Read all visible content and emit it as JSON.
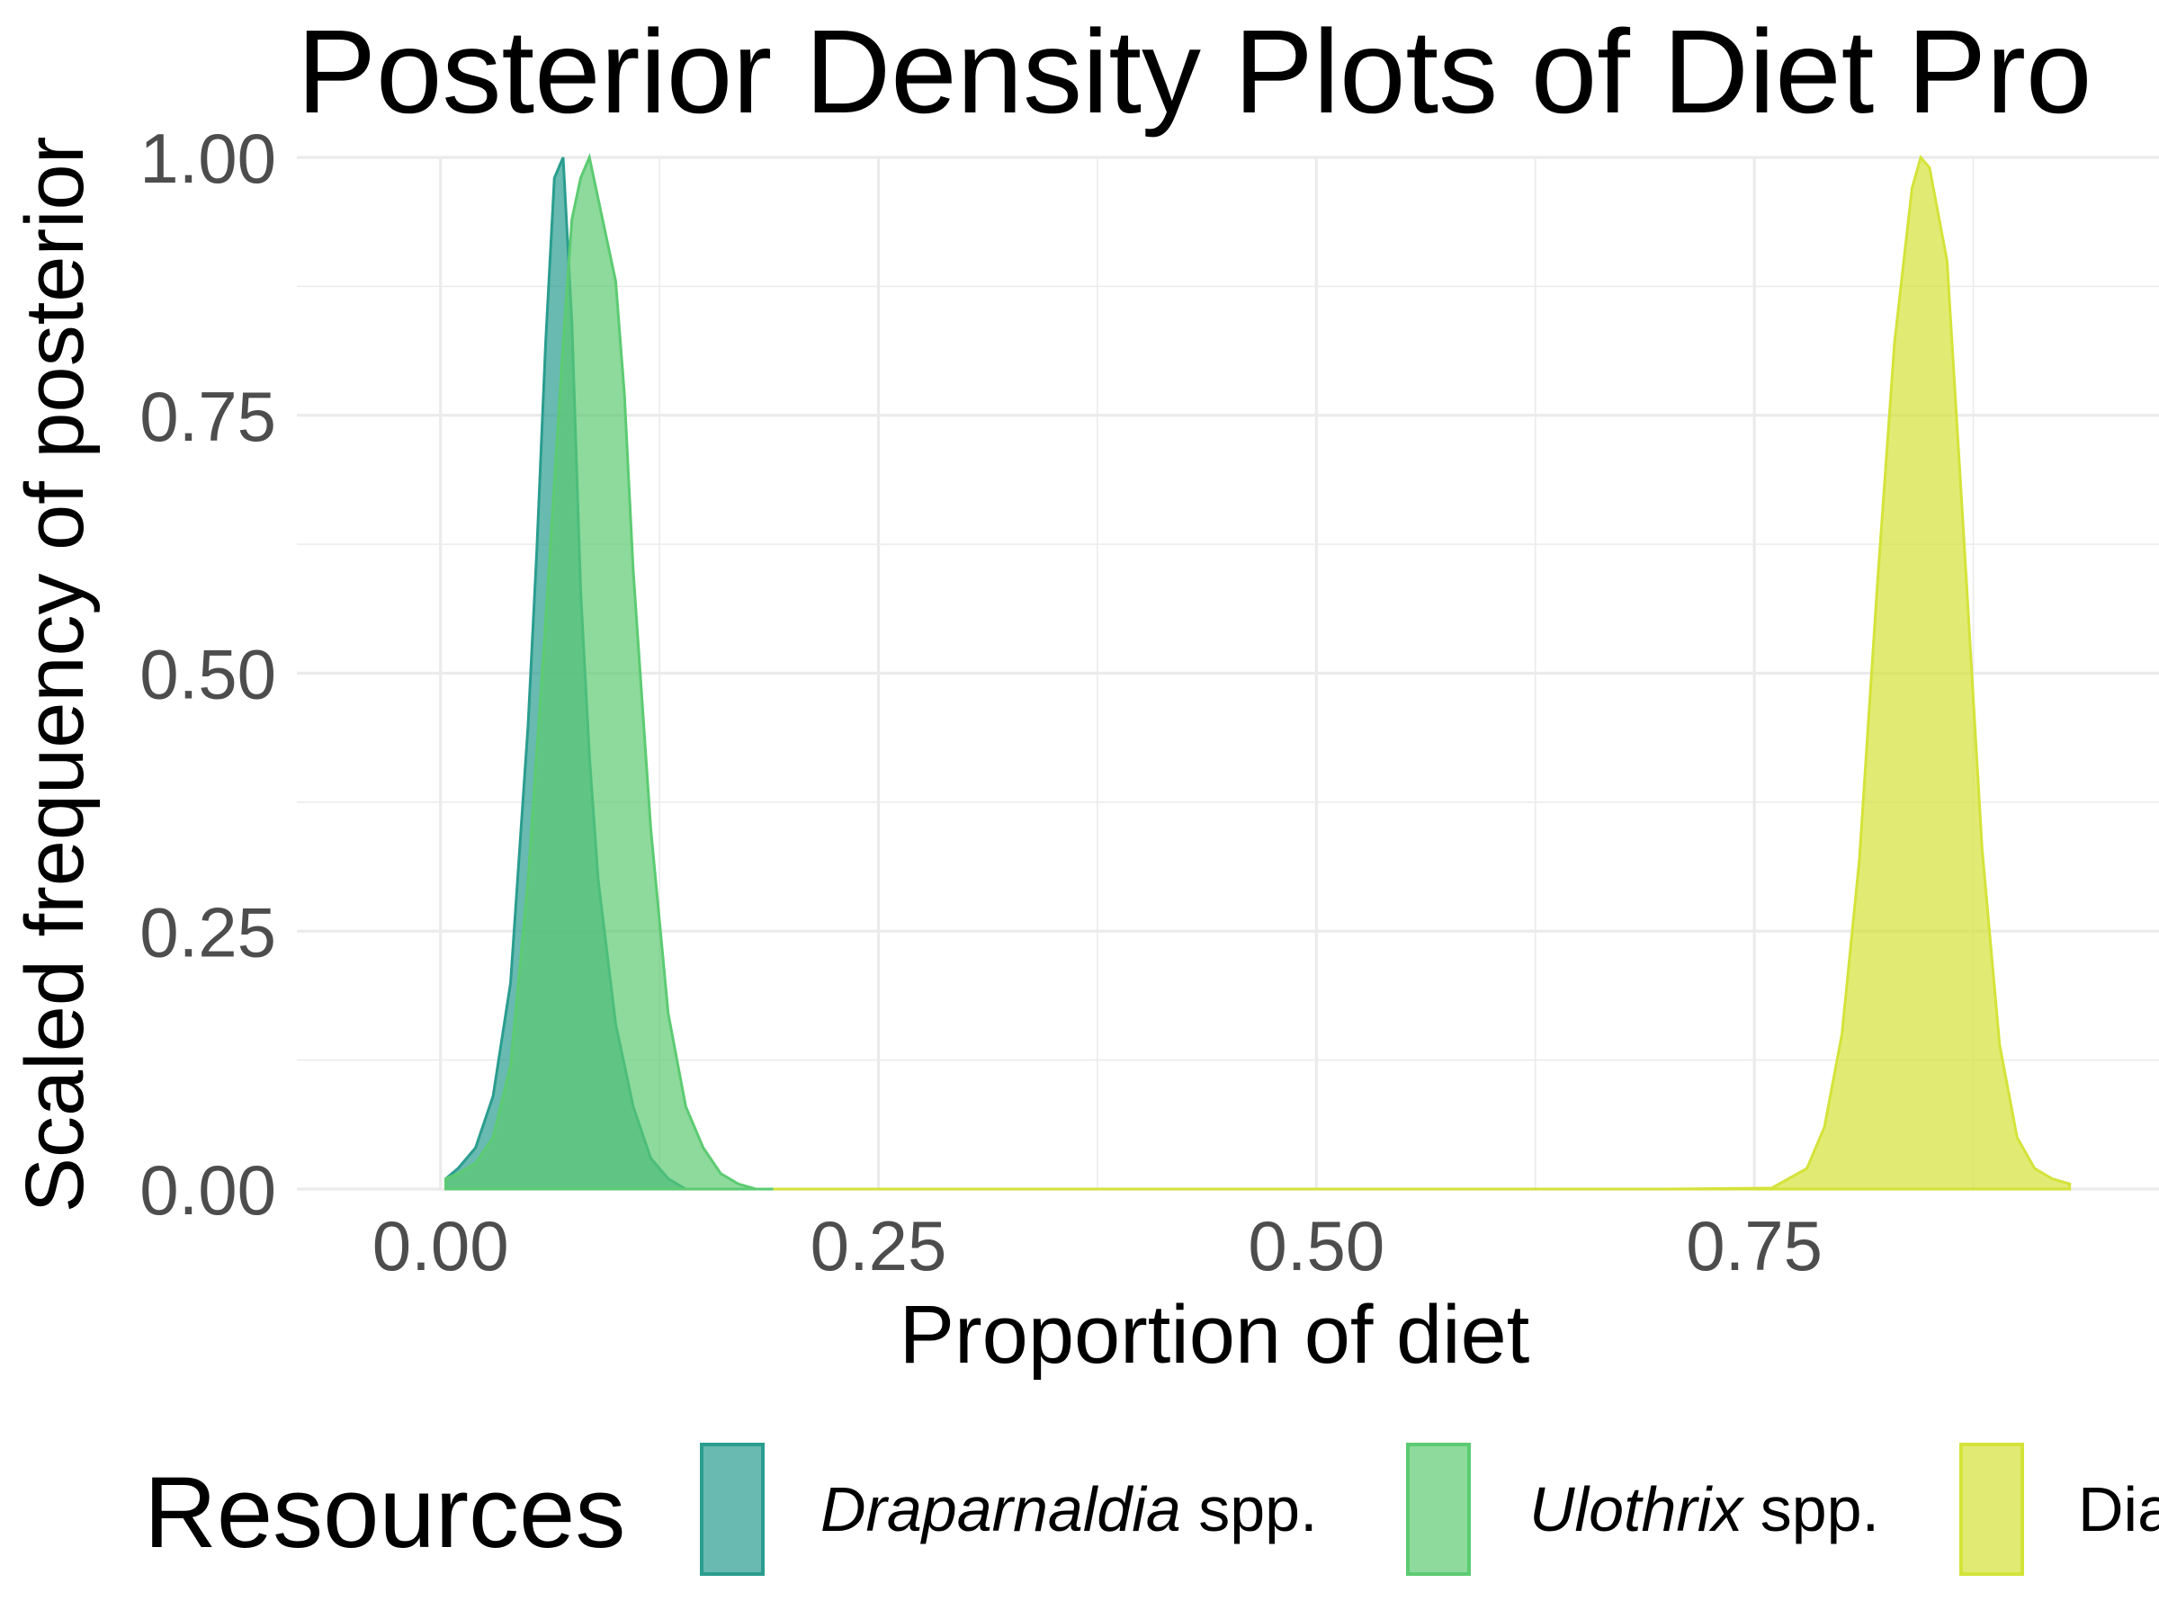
{
  "chart_data": {
    "type": "area",
    "title": "Posterior Density Plots of Diet Pro",
    "xlabel": "Proportion of diet",
    "ylabel": "Scaled frequency of posterior",
    "xlim": [
      -0.082,
      0.981
    ],
    "ylim": [
      0,
      1
    ],
    "x_ticks": [
      "0.00",
      "0.25",
      "0.50",
      "0.75"
    ],
    "x_tick_values": [
      0,
      0.25,
      0.5,
      0.75
    ],
    "y_ticks": [
      "0.00",
      "0.25",
      "0.50",
      "0.75",
      "1.00"
    ],
    "y_tick_values": [
      0,
      0.25,
      0.5,
      0.75,
      1
    ],
    "grid": "major and minor",
    "legend": {
      "title": "Resources",
      "placement": "bottom",
      "entries": [
        {
          "italic": "Draparnaldia",
          "plain": " spp."
        },
        {
          "italic": "Ulothrix",
          "plain": " spp."
        },
        {
          "italic": "",
          "plain": "Dia"
        }
      ]
    },
    "series": [
      {
        "fill": "#2a9d8f",
        "x": [
          0.003,
          0.01,
          0.02,
          0.03,
          0.04,
          0.05,
          0.055,
          0.06,
          0.065,
          0.07,
          0.075,
          0.08,
          0.085,
          0.09,
          0.1,
          0.11,
          0.12,
          0.13,
          0.14
        ],
        "y": [
          0.01,
          0.02,
          0.04,
          0.09,
          0.2,
          0.45,
          0.62,
          0.82,
          0.98,
          1.0,
          0.84,
          0.58,
          0.42,
          0.3,
          0.16,
          0.08,
          0.03,
          0.01,
          0.0
        ]
      },
      {
        "fill": "#5ccb72",
        "x": [
          0.003,
          0.01,
          0.02,
          0.03,
          0.04,
          0.05,
          0.06,
          0.07,
          0.075,
          0.08,
          0.085,
          0.09,
          0.1,
          0.105,
          0.11,
          0.12,
          0.13,
          0.14,
          0.15,
          0.16,
          0.17,
          0.18,
          0.19
        ],
        "y": [
          0.01,
          0.015,
          0.025,
          0.05,
          0.12,
          0.3,
          0.55,
          0.82,
          0.94,
          0.98,
          1.0,
          0.96,
          0.88,
          0.77,
          0.6,
          0.35,
          0.17,
          0.08,
          0.04,
          0.015,
          0.005,
          0.0,
          0.0
        ]
      },
      {
        "fill": "#d4e339",
        "x": [
          0.19,
          0.3,
          0.5,
          0.7,
          0.76,
          0.78,
          0.79,
          0.8,
          0.81,
          0.82,
          0.83,
          0.84,
          0.845,
          0.85,
          0.86,
          0.87,
          0.88,
          0.89,
          0.9,
          0.91,
          0.92,
          0.93
        ],
        "y": [
          0.0,
          0.0,
          0.0,
          0.0,
          0.001,
          0.02,
          0.06,
          0.15,
          0.32,
          0.58,
          0.82,
          0.97,
          1.0,
          0.99,
          0.9,
          0.62,
          0.33,
          0.14,
          0.05,
          0.02,
          0.01,
          0.005
        ]
      }
    ]
  }
}
